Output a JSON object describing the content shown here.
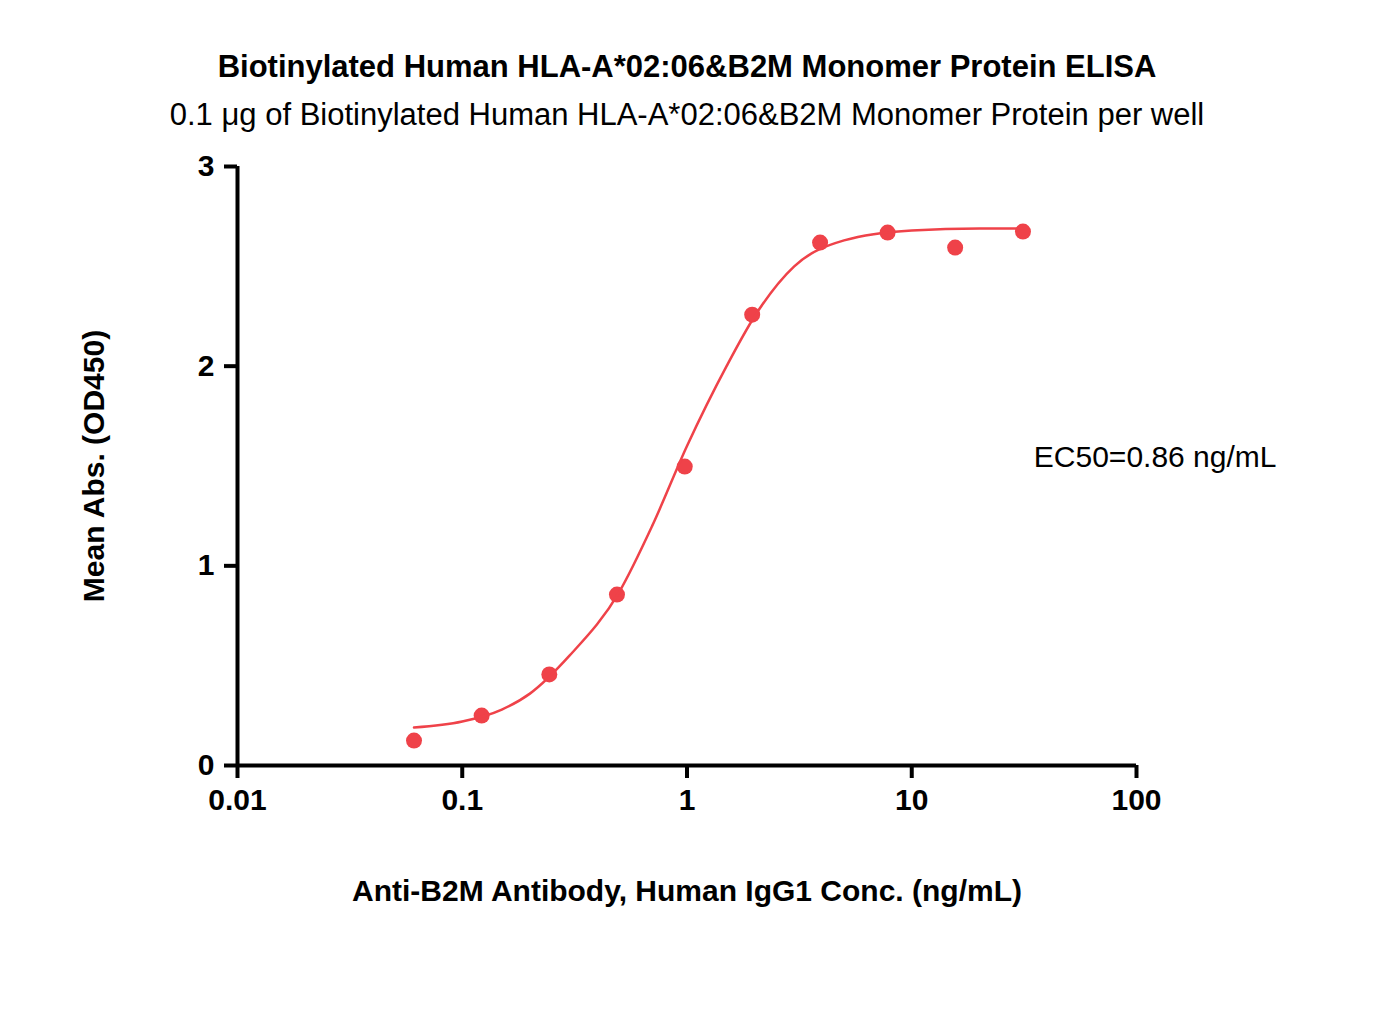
{
  "chart_data": {
    "type": "scatter",
    "title": "Biotinylated Human HLA-A*02:06&B2M Monomer Protein ELISA",
    "subtitle": "0.1 μg of Biotinylated Human HLA-A*02:06&B2M Monomer Protein per well",
    "x_label": "Anti-B2M Antibody, Human IgG1 Conc. (ng/mL)",
    "y_label": "Mean Abs. (OD450)",
    "annotation": "EC50=0.86 ng/mL",
    "log": "x",
    "xlim": [
      0.01,
      100
    ],
    "xticks": [
      0.01,
      0.1,
      1,
      10,
      100
    ],
    "ylim": [
      0,
      3
    ],
    "yticks": [
      0,
      1,
      2,
      3
    ],
    "grid": false,
    "series": [
      {
        "type": "scatter",
        "marker": "circle",
        "color": "#ef4249",
        "x": [
          0.061,
          0.122,
          0.244,
          0.488,
          0.977,
          1.95,
          3.91,
          7.81,
          15.6,
          31.25
        ],
        "values": [
          0.125,
          0.25,
          0.456,
          0.856,
          1.497,
          2.258,
          2.619,
          2.669,
          2.594,
          2.674
        ]
      },
      {
        "type": "line",
        "line_style": "solid",
        "color": "#ef4249",
        "x": [
          0.061,
          0.1,
          0.15,
          0.2,
          0.3,
          0.5,
          0.7,
          1,
          1.5,
          2,
          3,
          5,
          10,
          20,
          31.25
        ],
        "values": [
          0.19,
          0.22,
          0.28,
          0.36,
          0.55,
          0.87,
          1.2,
          1.6,
          2.0,
          2.25,
          2.5,
          2.63,
          2.68,
          2.69,
          2.69
        ]
      }
    ]
  }
}
